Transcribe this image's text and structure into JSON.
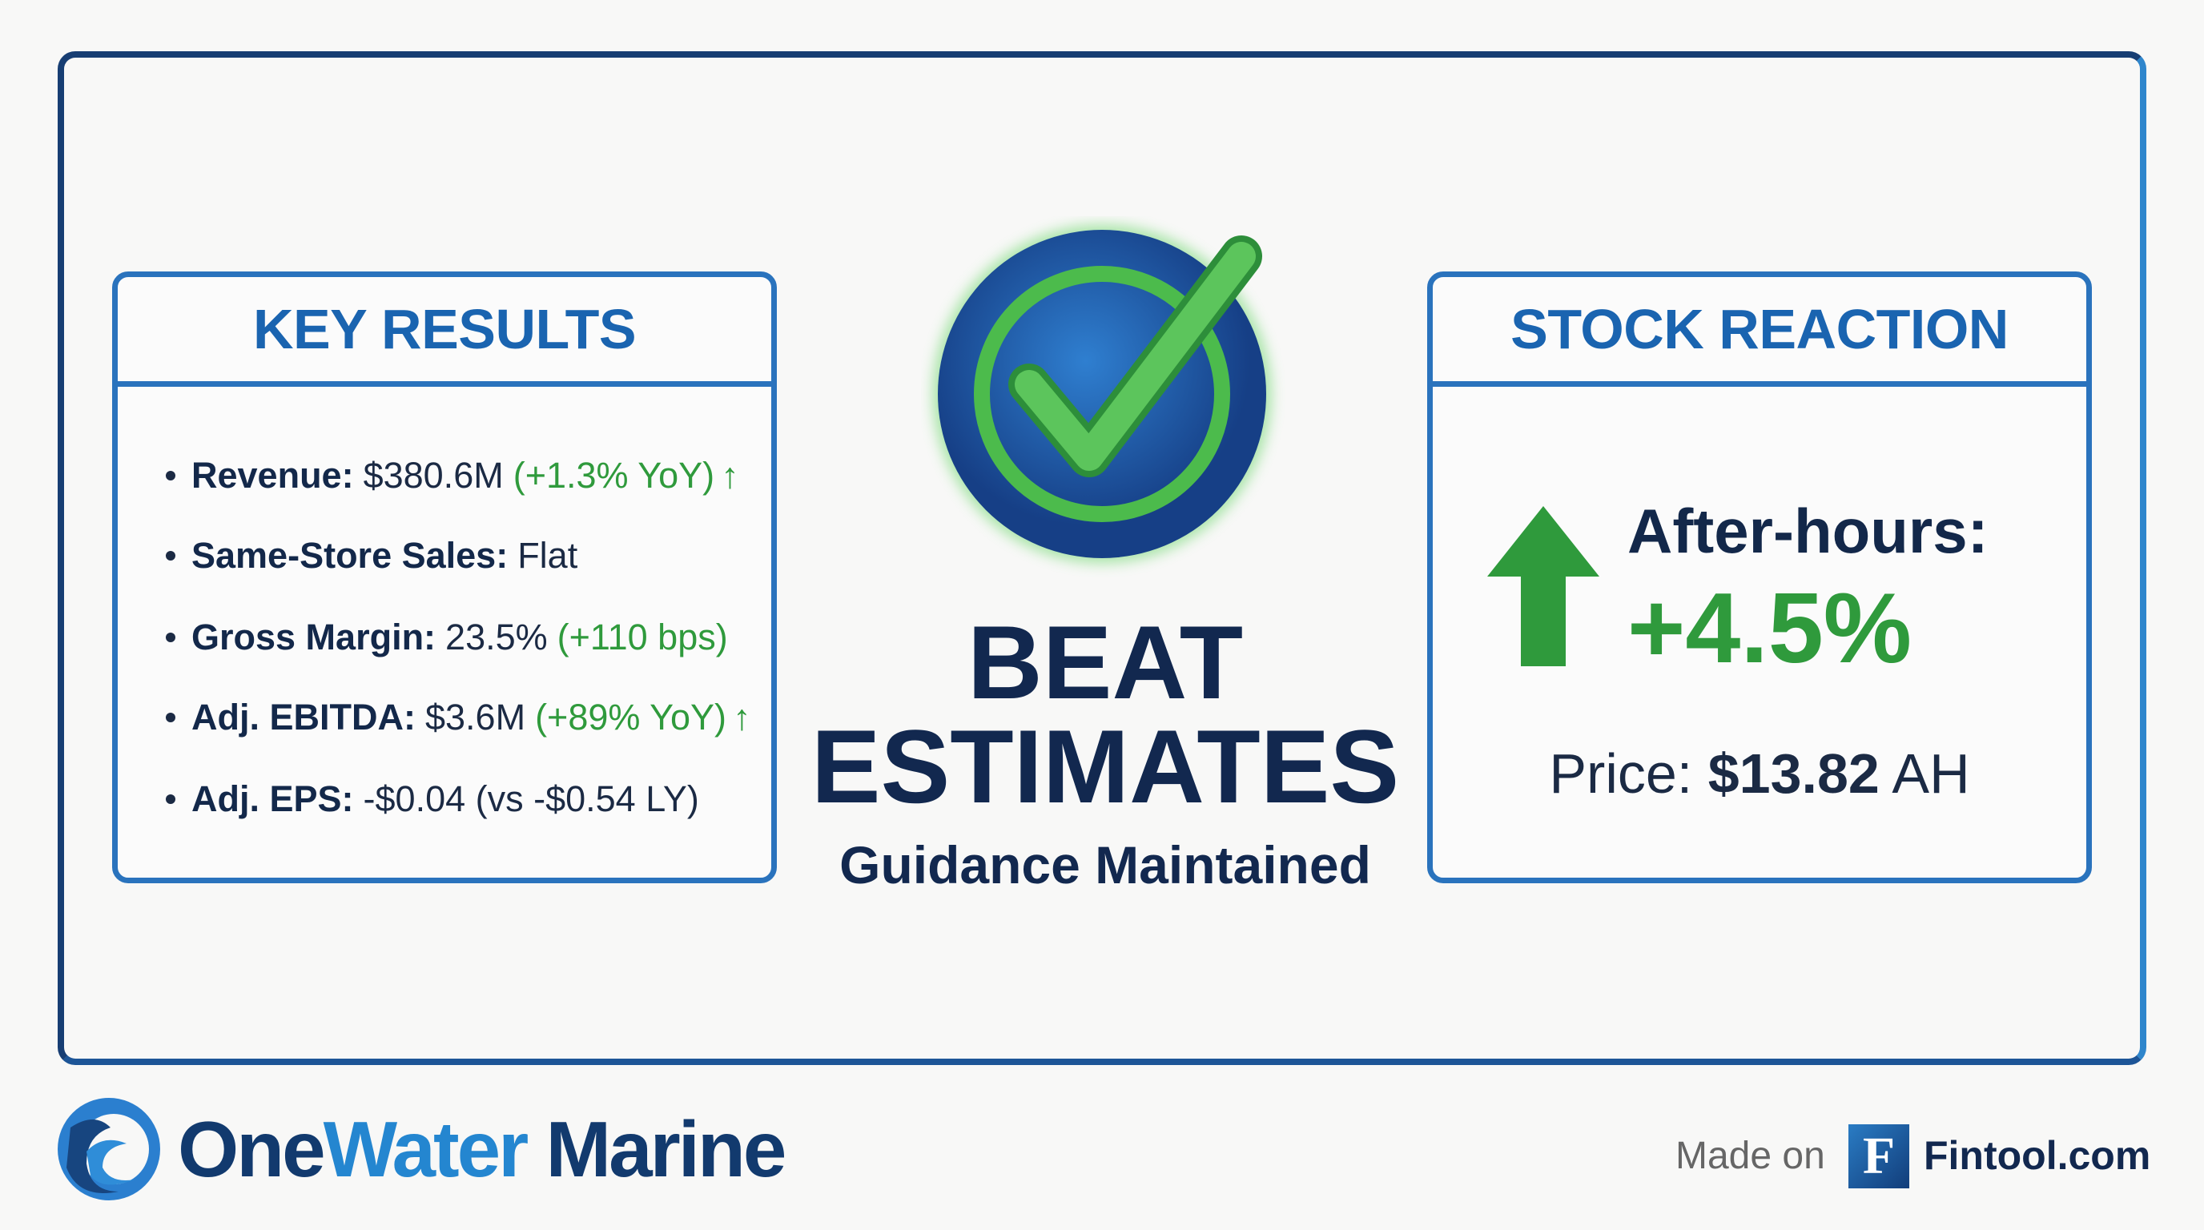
{
  "key_results": {
    "title": "KEY RESULTS",
    "items": [
      {
        "label": "Revenue:",
        "value": "$380.6M",
        "change": "(+1.3% YoY)",
        "arrow": "↑"
      },
      {
        "label": "Same-Store Sales:",
        "value": "Flat"
      },
      {
        "label": "Gross Margin:",
        "value": "23.5%",
        "change": "(+110 bps)"
      },
      {
        "label": "Adj. EBITDA:",
        "value": "$3.6M",
        "change": "(+89% YoY)",
        "arrow": "↑"
      },
      {
        "label": "Adj. EPS:",
        "value": "-$0.04 (vs -$0.54 LY)"
      }
    ]
  },
  "verdict": {
    "line1": "BEAT",
    "line2": "ESTIMATES",
    "subtitle": "Guidance Maintained",
    "icon": "check-circle-icon"
  },
  "stock_reaction": {
    "title": "STOCK REACTION",
    "label": "After-hours:",
    "change": "+4.5%",
    "price_label": "Price:",
    "price": "$13.82",
    "price_suffix": "AH",
    "icon": "arrow-up-icon"
  },
  "footer": {
    "company_part1": "One",
    "company_part2": "Water",
    "company_part3": " Marine",
    "made_on": "Made on",
    "fintool_logo": "F",
    "fintool": "Fintool.com"
  },
  "colors": {
    "accent": "#1a64b0",
    "navy": "#12284f",
    "green": "#2f9a3c"
  }
}
